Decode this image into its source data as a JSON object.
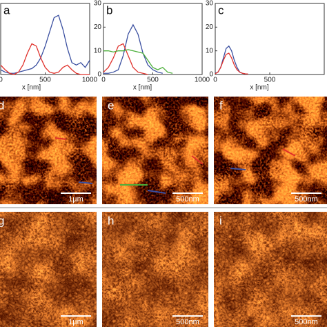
{
  "chart_data": [
    {
      "type": "line",
      "label": "a",
      "xlabel": "x [nm]",
      "xlim": [
        0,
        1000
      ],
      "ylim": [
        0,
        30
      ],
      "xticks": [
        0,
        500,
        1000
      ],
      "x": [
        0,
        50,
        100,
        150,
        200,
        250,
        300,
        350,
        400,
        450,
        500,
        550,
        600,
        650,
        700,
        750,
        800,
        850,
        900,
        950,
        1000
      ],
      "series": [
        {
          "color": "#3a4fa0",
          "values": [
            2,
            1,
            0.5,
            0.5,
            1,
            1.5,
            2,
            2.5,
            4,
            7,
            12,
            18,
            24,
            25,
            19,
            11,
            5,
            4,
            5,
            3,
            6
          ]
        },
        {
          "color": "#e0302a",
          "values": [
            4,
            2,
            0.5,
            0,
            1,
            4,
            9,
            13,
            12,
            7,
            3,
            1,
            0.5,
            1,
            3,
            4,
            2,
            0.5,
            0,
            0,
            0
          ]
        }
      ]
    },
    {
      "type": "line",
      "label": "b",
      "xlabel": "x [nm]",
      "xlim": [
        0,
        1000
      ],
      "ylim": [
        0,
        30
      ],
      "xticks": [
        0,
        500,
        1000
      ],
      "yticks": [
        0,
        10,
        20,
        30
      ],
      "x": [
        0,
        50,
        100,
        150,
        200,
        250,
        300,
        350,
        400,
        450,
        500,
        550,
        600,
        650,
        700
      ],
      "series": [
        {
          "color": "#3a4fa0",
          "values": [
            0.5,
            0.5,
            1,
            2,
            8,
            17,
            21,
            17,
            9,
            4,
            2,
            1,
            0.5,
            null,
            null
          ]
        },
        {
          "color": "#e0302a",
          "values": [
            1,
            3,
            7,
            12,
            13,
            8,
            3,
            1,
            0.5,
            0,
            null,
            null,
            null,
            null,
            null
          ]
        },
        {
          "color": "#4caf3a",
          "values": [
            10,
            10,
            9.5,
            10,
            10,
            10.5,
            10,
            9.5,
            9,
            6,
            3,
            2,
            3,
            1,
            0.5
          ]
        }
      ]
    },
    {
      "type": "line",
      "label": "c",
      "xlabel": "x [nm]",
      "xlim": [
        0,
        1000
      ],
      "ylim": [
        0,
        30
      ],
      "xticks": [
        0,
        500
      ],
      "yticks": [
        0,
        10,
        20,
        30
      ],
      "x": [
        0,
        25,
        50,
        75,
        100,
        125,
        150,
        175,
        200,
        225,
        250,
        275,
        300
      ],
      "series": [
        {
          "color": "#3a4fa0",
          "values": [
            0.5,
            1,
            3,
            7,
            11,
            12,
            10,
            6,
            3,
            1,
            0.5,
            0.3,
            0.2
          ]
        },
        {
          "color": "#e0302a",
          "values": [
            0.3,
            1,
            3,
            6,
            8.5,
            9,
            7,
            4,
            2,
            1,
            0.5,
            0.3,
            0.2
          ]
        }
      ]
    }
  ],
  "images": [
    {
      "label": "d",
      "scale_bar": "1µm"
    },
    {
      "label": "e",
      "scale_bar": "500nm"
    },
    {
      "label": "f",
      "scale_bar": "500nm"
    },
    {
      "label": "g",
      "scale_bar": "1µm"
    },
    {
      "label": "h",
      "scale_bar": "500nm"
    },
    {
      "label": "i",
      "scale_bar": "500nm"
    }
  ]
}
